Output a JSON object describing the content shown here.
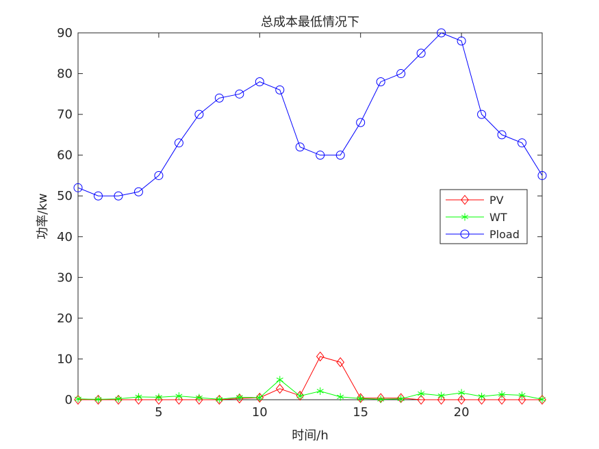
{
  "chart_data": {
    "type": "line",
    "title": "总成本最低情况下",
    "xlabel": "时间/h",
    "ylabel": "功率/kw",
    "xlim": [
      1,
      24
    ],
    "ylim": [
      0,
      90
    ],
    "xticks": [
      5,
      10,
      15,
      20
    ],
    "yticks": [
      0,
      10,
      20,
      30,
      40,
      50,
      60,
      70,
      80,
      90
    ],
    "grid": false,
    "legend_position": "right",
    "x": [
      1,
      2,
      3,
      4,
      5,
      6,
      7,
      8,
      9,
      10,
      11,
      12,
      13,
      14,
      15,
      16,
      17,
      18,
      19,
      20,
      21,
      22,
      23,
      24
    ],
    "series": [
      {
        "name": "PV",
        "color": "#ff0000",
        "marker": "diamond",
        "values": [
          0,
          0,
          0,
          0,
          0,
          0,
          0,
          0,
          0.3,
          0.5,
          2.7,
          1.0,
          10.6,
          9.2,
          0.4,
          0.4,
          0.4,
          0,
          0,
          0,
          0,
          0,
          0,
          0
        ]
      },
      {
        "name": "WT",
        "color": "#00ff00",
        "marker": "asterisk",
        "values": [
          0.2,
          0.1,
          0.2,
          0.7,
          0.6,
          0.9,
          0.5,
          0.1,
          0.6,
          0.5,
          4.9,
          0.9,
          2.1,
          0.7,
          0.3,
          0.1,
          0.2,
          1.5,
          1.0,
          1.7,
          0.8,
          1.3,
          1.1,
          0.1
        ]
      },
      {
        "name": "Pload",
        "color": "#0000ff",
        "marker": "circle",
        "values": [
          52,
          50,
          50,
          51,
          55,
          63,
          70,
          74,
          75,
          78,
          76,
          62,
          60,
          60,
          68,
          78,
          80,
          85,
          90,
          88,
          70,
          65,
          63,
          55
        ]
      }
    ]
  }
}
